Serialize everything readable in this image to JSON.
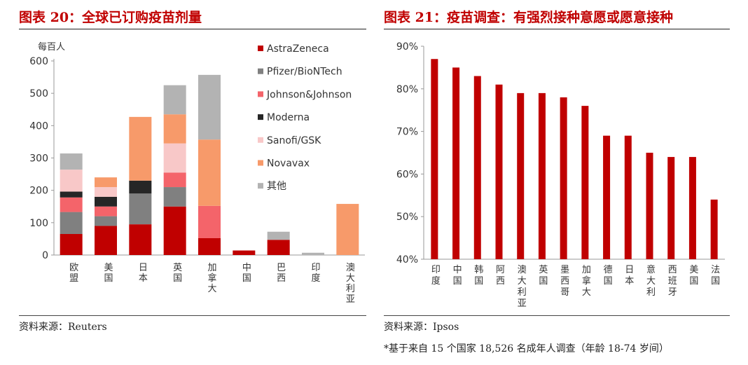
{
  "left": {
    "title": "图表 20：全球已订购疫苗剂量",
    "source": "资料来源：Reuters"
  },
  "right": {
    "title": "图表 21：疫苗调查：有强烈接种意愿或愿意接种",
    "source": "资料来源：Ipsos",
    "note": "*基于来自 15 个国家 18,526 名成年人调查（年龄 18-74 岁间）"
  },
  "chart_data": [
    {
      "type": "bar",
      "stacked": true,
      "ylabel": "每百人",
      "ylim": [
        0,
        600
      ],
      "yticks": [
        0,
        100,
        200,
        300,
        400,
        500,
        600
      ],
      "categories": [
        "欧盟",
        "美国",
        "日本",
        "英国",
        "加拿大",
        "中国",
        "巴西",
        "印度",
        "澳大利亚"
      ],
      "legend_position": "top-right",
      "series": [
        {
          "name": "AstraZeneca",
          "color": "#c00000",
          "values": [
            65,
            90,
            95,
            150,
            52,
            14,
            47,
            0,
            0
          ]
        },
        {
          "name": "Pfizer/BioNTech",
          "color": "#808080",
          "values": [
            68,
            30,
            95,
            60,
            0,
            0,
            0,
            0,
            0
          ]
        },
        {
          "name": "Johnson&Johnson",
          "color": "#f4646a",
          "values": [
            45,
            30,
            0,
            45,
            100,
            0,
            0,
            0,
            0
          ]
        },
        {
          "name": "Moderna",
          "color": "#262626",
          "values": [
            18,
            30,
            40,
            0,
            0,
            0,
            0,
            0,
            0
          ]
        },
        {
          "name": "Sanofi/GSK",
          "color": "#f8c8c8",
          "values": [
            68,
            30,
            0,
            90,
            0,
            0,
            0,
            0,
            0
          ]
        },
        {
          "name": "Novavax",
          "color": "#f79a6a",
          "values": [
            0,
            30,
            197,
            90,
            205,
            0,
            0,
            0,
            158
          ]
        },
        {
          "name": "其他",
          "color": "#b3b3b3",
          "values": [
            50,
            0,
            0,
            90,
            200,
            0,
            25,
            7,
            0
          ]
        }
      ]
    },
    {
      "type": "bar",
      "ylim": [
        40,
        90
      ],
      "yticks": [
        "40%",
        "50%",
        "60%",
        "70%",
        "80%",
        "90%"
      ],
      "categories": [
        "印度",
        "中国",
        "韩国",
        "阿西",
        "澳大利亚",
        "英国",
        "墨西哥",
        "加拿大",
        "德国",
        "日本",
        "意大利",
        "西班牙",
        "美国",
        "法国"
      ],
      "values": [
        87,
        85,
        83,
        81,
        79,
        79,
        78,
        76,
        69,
        69,
        65,
        64,
        64,
        54
      ],
      "color": "#c00000"
    }
  ]
}
